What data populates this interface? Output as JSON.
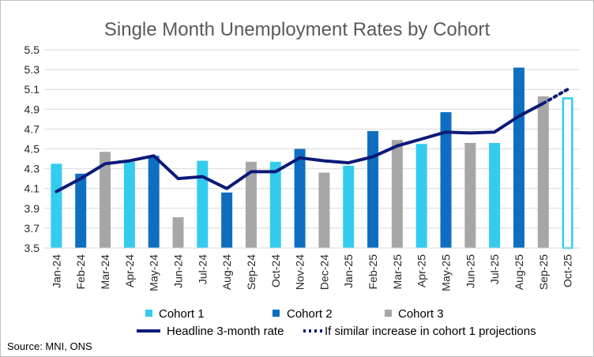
{
  "chart_data": {
    "type": "bar",
    "title": "Single Month Unemployment Rates by Cohort",
    "source": "Source: MNI, ONS",
    "ylim": [
      3.5,
      5.5
    ],
    "yticks": [
      "3.5",
      "3.7",
      "3.9",
      "4.1",
      "4.3",
      "4.5",
      "4.7",
      "4.9",
      "5.1",
      "5.3",
      "5.5"
    ],
    "categories": [
      "Jan-24",
      "Feb-24",
      "Mar-24",
      "Apr-24",
      "May-24",
      "Jun-24",
      "Jul-24",
      "Aug-24",
      "Sep-24",
      "Oct-24",
      "Nov-24",
      "Dec-24",
      "Jan-25",
      "Feb-25",
      "Mar-25",
      "Apr-25",
      "May-25",
      "Jun-25",
      "Jul-25",
      "Aug-25",
      "Sep-25",
      "Oct-25"
    ],
    "bar_values": [
      4.35,
      4.25,
      4.47,
      4.37,
      4.43,
      3.81,
      4.38,
      4.06,
      4.37,
      4.37,
      4.5,
      4.26,
      4.33,
      4.68,
      4.59,
      4.55,
      4.87,
      4.56,
      4.56,
      5.32,
      5.03,
      5.02
    ],
    "bar_cohorts": [
      1,
      2,
      3,
      1,
      2,
      3,
      1,
      2,
      3,
      1,
      2,
      3,
      1,
      2,
      3,
      1,
      2,
      3,
      1,
      2,
      3,
      1
    ],
    "bar_projected": [
      false,
      false,
      false,
      false,
      false,
      false,
      false,
      false,
      false,
      false,
      false,
      false,
      false,
      false,
      false,
      false,
      false,
      false,
      false,
      false,
      false,
      true
    ],
    "series": [
      {
        "name": "Cohort 1",
        "color": "#33ccee"
      },
      {
        "name": "Cohort 2",
        "color": "#0e6fc1"
      },
      {
        "name": "Cohort 3",
        "color": "#a6a6a6"
      },
      {
        "name": "Headline 3-month rate",
        "color": "#0c1a78",
        "values": [
          4.07,
          4.2,
          4.35,
          4.38,
          4.43,
          4.2,
          4.22,
          4.1,
          4.27,
          4.27,
          4.41,
          4.38,
          4.36,
          4.42,
          4.53,
          4.6,
          4.67,
          4.66,
          4.67,
          4.83,
          4.96,
          null
        ]
      },
      {
        "name": "If similar increase in cohort 1 projections",
        "color": "#0c1a78",
        "style": "dotted",
        "values": [
          null,
          null,
          null,
          null,
          null,
          null,
          null,
          null,
          null,
          null,
          null,
          null,
          null,
          null,
          null,
          null,
          null,
          null,
          null,
          null,
          4.96,
          5.1
        ]
      }
    ]
  }
}
